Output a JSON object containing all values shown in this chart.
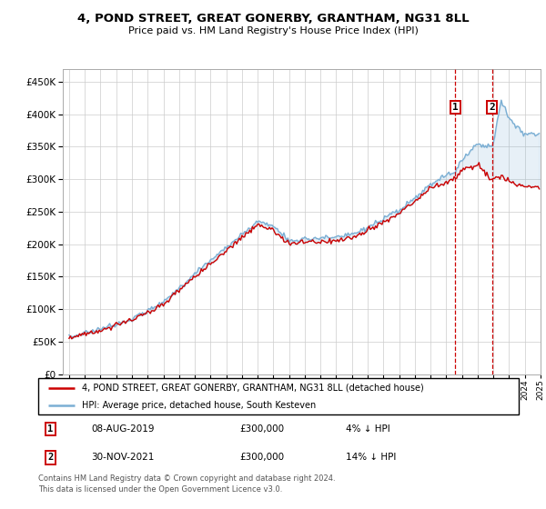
{
  "title": "4, POND STREET, GREAT GONERBY, GRANTHAM, NG31 8LL",
  "subtitle": "Price paid vs. HM Land Registry's House Price Index (HPI)",
  "legend_line1": "4, POND STREET, GREAT GONERBY, GRANTHAM, NG31 8LL (detached house)",
  "legend_line2": "HPI: Average price, detached house, South Kesteven",
  "annotation1_date": "08-AUG-2019",
  "annotation1_price": "£300,000",
  "annotation1_hpi": "4% ↓ HPI",
  "annotation2_date": "30-NOV-2021",
  "annotation2_price": "£300,000",
  "annotation2_hpi": "14% ↓ HPI",
  "footnote": "Contains HM Land Registry data © Crown copyright and database right 2024.\nThis data is licensed under the Open Government Licence v3.0.",
  "hpi_color": "#7bafd4",
  "price_color": "#cc0000",
  "annotation_color": "#cc0000",
  "grid_color": "#cccccc",
  "ylim": [
    0,
    470000
  ],
  "yticks": [
    0,
    50000,
    100000,
    150000,
    200000,
    250000,
    300000,
    350000,
    400000,
    450000
  ],
  "sale1_year": 2019.583,
  "sale2_year": 2021.917,
  "key_years": [
    1995,
    1997,
    1999,
    2001,
    2003,
    2004,
    2006,
    2007,
    2008,
    2009,
    2010,
    2011,
    2012,
    2013,
    2014,
    2015,
    2016,
    2017,
    2018,
    2019.583,
    2020.0,
    2021.0,
    2021.917,
    2022.5,
    2023,
    2023.5,
    2024
  ],
  "key_hpi": [
    57000,
    70000,
    85000,
    110000,
    155000,
    175000,
    215000,
    235000,
    228000,
    205000,
    208000,
    210000,
    210000,
    215000,
    225000,
    238000,
    252000,
    270000,
    292000,
    313000,
    330000,
    355000,
    349000,
    420000,
    395000,
    380000,
    370000
  ],
  "key_price": [
    55000,
    68000,
    83000,
    107000,
    150000,
    170000,
    210000,
    230000,
    222000,
    200000,
    203000,
    205000,
    205000,
    210000,
    220000,
    233000,
    247000,
    265000,
    287000,
    300000,
    315000,
    320000,
    300000,
    305000,
    298000,
    292000,
    288000
  ]
}
